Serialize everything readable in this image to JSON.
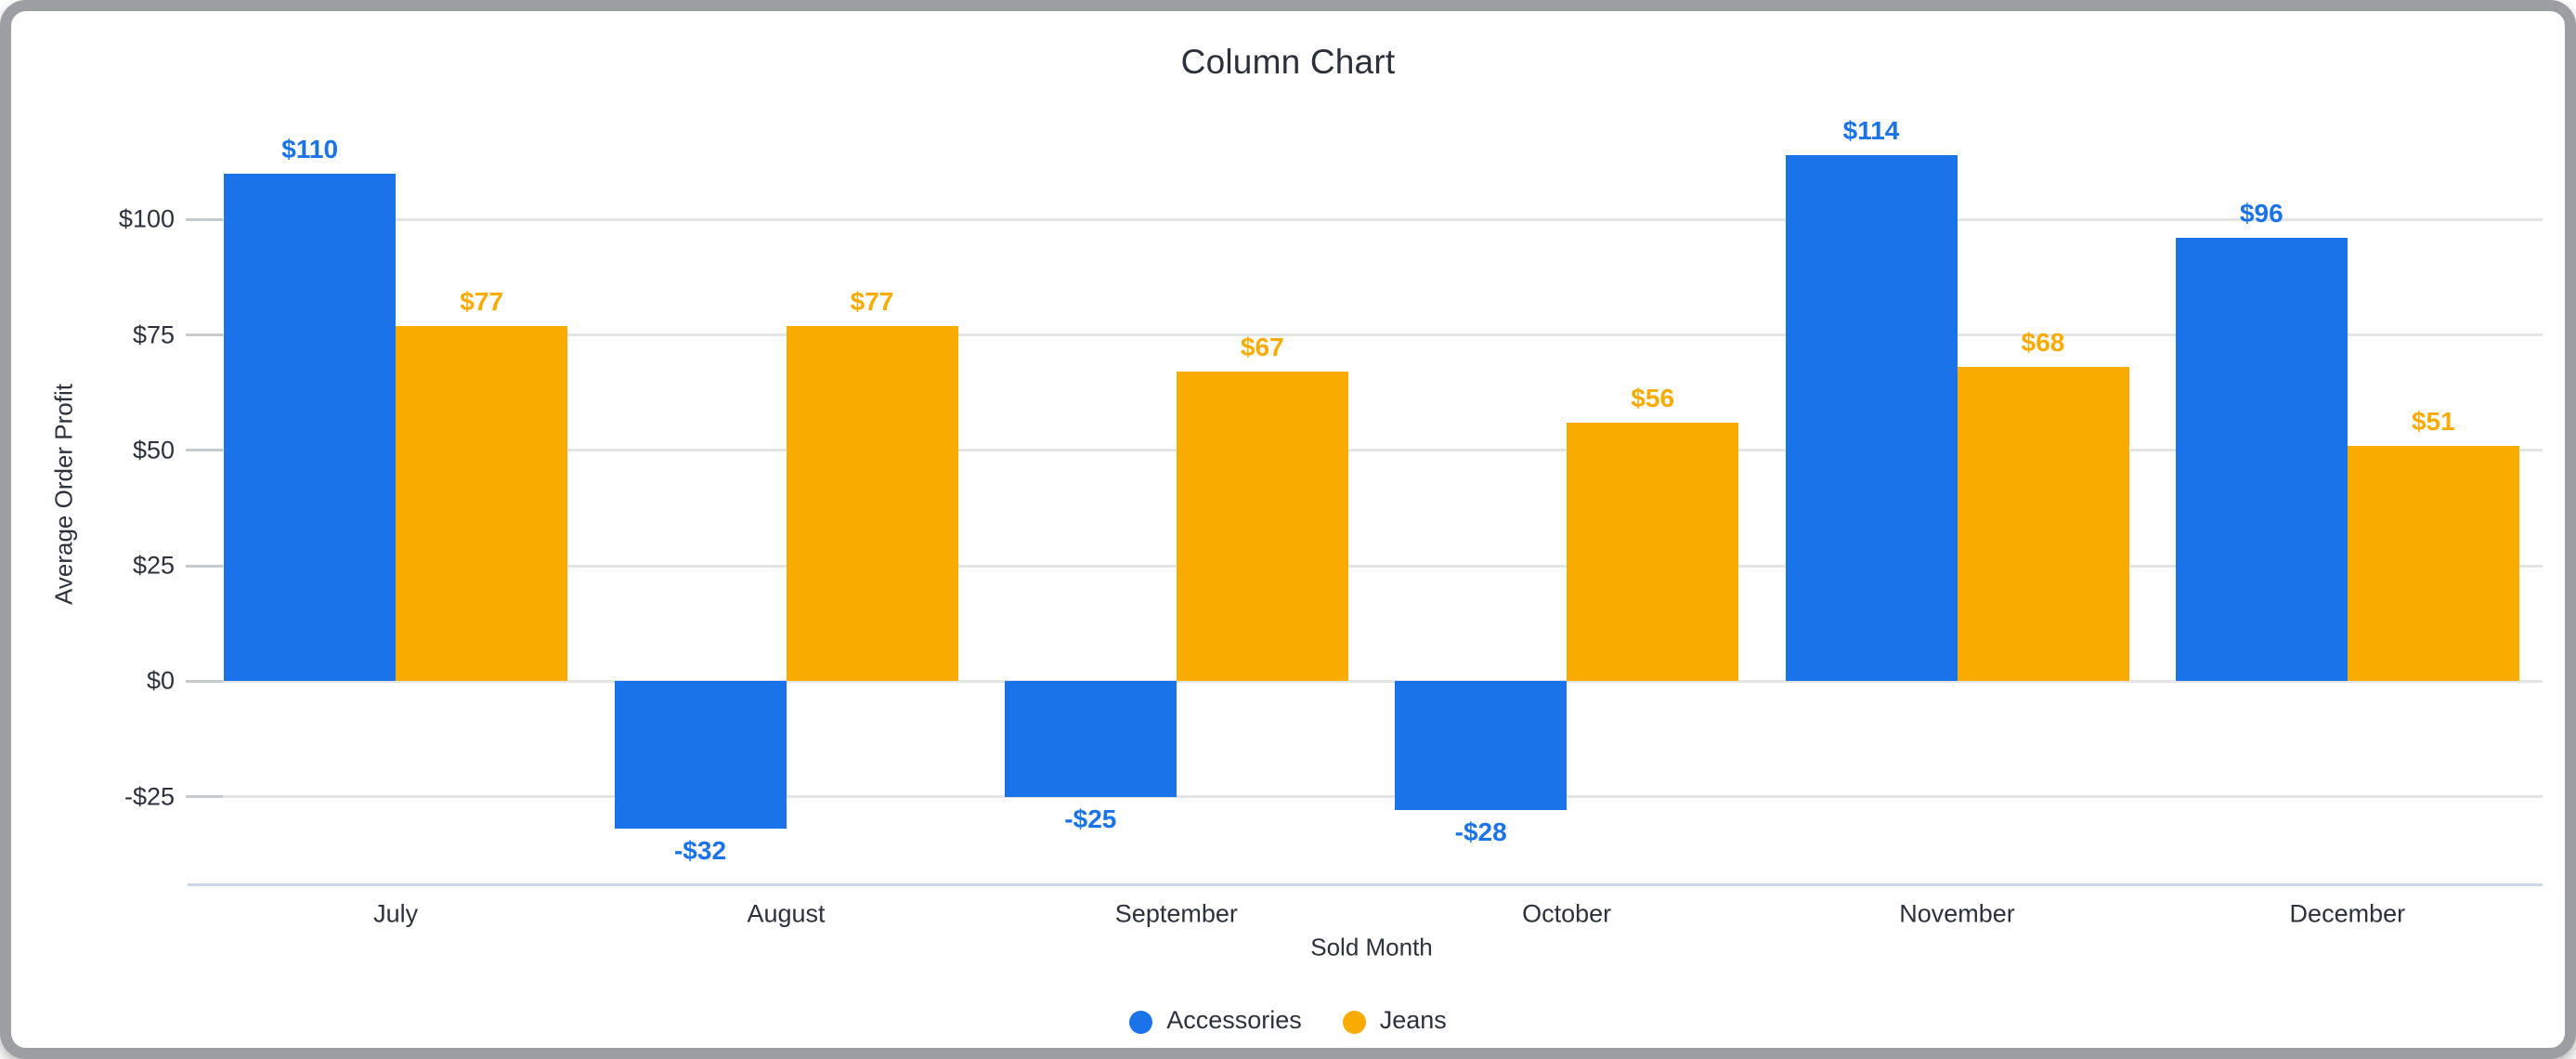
{
  "frame": {
    "border_color": "#9b9ea3",
    "background": "#ffffff"
  },
  "chart_data": {
    "type": "bar",
    "title": "Column Chart",
    "xlabel": "Sold Month",
    "ylabel": "Average Order Profit",
    "categories": [
      "July",
      "August",
      "September",
      "October",
      "November",
      "December"
    ],
    "series": [
      {
        "name": "Accessories",
        "color": "#1a73e8",
        "values": [
          110,
          -32,
          -25,
          -28,
          114,
          96
        ],
        "labels": [
          "$110",
          "-$32",
          "-$25",
          "-$28",
          "$114",
          "$96"
        ]
      },
      {
        "name": "Jeans",
        "color": "#f9ab00",
        "values": [
          77,
          77,
          67,
          56,
          68,
          51
        ],
        "labels": [
          "$77",
          "$77",
          "$67",
          "$56",
          "$68",
          "$51"
        ]
      }
    ],
    "y_ticks": [
      {
        "value": 100,
        "label": "$100"
      },
      {
        "value": 75,
        "label": "$75"
      },
      {
        "value": 50,
        "label": "$50"
      },
      {
        "value": 25,
        "label": "$25"
      },
      {
        "value": 0,
        "label": "$0"
      },
      {
        "value": -25,
        "label": "-$25"
      }
    ],
    "ylim": [
      -44,
      125
    ],
    "grid": true,
    "legend_position": "bottom",
    "colors": {
      "gridline": "#e5e5e5",
      "tickmark": "#c6c9cd",
      "axis_line": "#ccd6e9",
      "text": "#2b323b",
      "title_text": "#2a313a"
    }
  }
}
